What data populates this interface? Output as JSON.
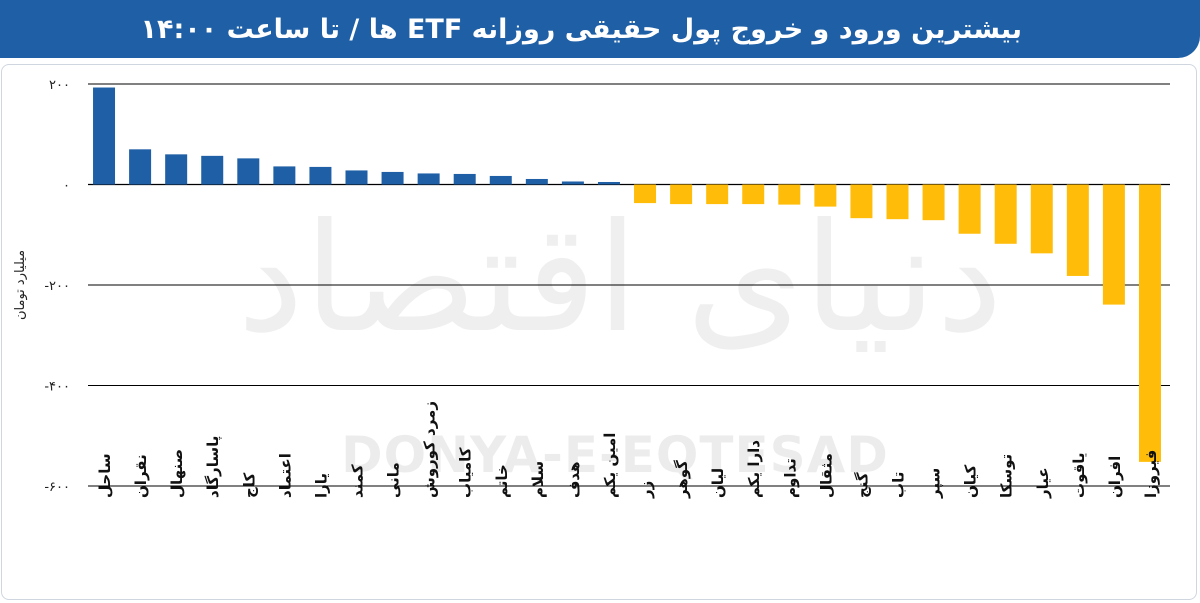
{
  "header": {
    "title": "بیشترین ورود و خروج پول حقیقی روزانه ETF ها / تا ساعت ۱۴:۰۰"
  },
  "watermark": {
    "logo_text": "دنیای اقتصاد",
    "latin_text": "DONYA-E-EQTESAD"
  },
  "colors": {
    "header": "#1f5fa6",
    "positive": "#1f5fa6",
    "negative": "#ffbd0a"
  },
  "chart_data": {
    "type": "bar",
    "title": "بیشترین ورود و خروج پول حقیقی روزانه ETF ها / تا ساعت ۱۴:۰۰",
    "xlabel": "",
    "ylabel": "میلیارد تومان",
    "ylim": [
      -600,
      200
    ],
    "yticks": [
      200,
      0,
      -200,
      -400,
      -600
    ],
    "ytick_labels": [
      "۲۰۰",
      "۰",
      "-۲۰۰",
      "-۴۰۰",
      "-۶۰۰"
    ],
    "grid": true,
    "categories": [
      "ساحل",
      "نقران",
      "صنهال",
      "پاسارگاد",
      "کاج",
      "اعتماد",
      "یارا",
      "کمند",
      "مانی",
      "زمرد کوروش",
      "کامیاب",
      "خاتم",
      "سلام",
      "هدف",
      "امین یکم",
      "زر",
      "گوهر",
      "لیان",
      "دارا یکم",
      "تداوم",
      "مثقال",
      "گنج",
      "تاب",
      "سپر",
      "کیان",
      "توسکا",
      "عیار",
      "یاقوت",
      "افران",
      "فیروزا"
    ],
    "values": [
      193,
      70,
      60,
      57,
      52,
      36,
      35,
      28,
      25,
      22,
      21,
      17,
      11,
      6,
      5,
      -37,
      -39,
      -39,
      -39,
      -40,
      -44,
      -67,
      -69,
      -71,
      -98,
      -118,
      -137,
      -182,
      -239,
      -552
    ]
  }
}
